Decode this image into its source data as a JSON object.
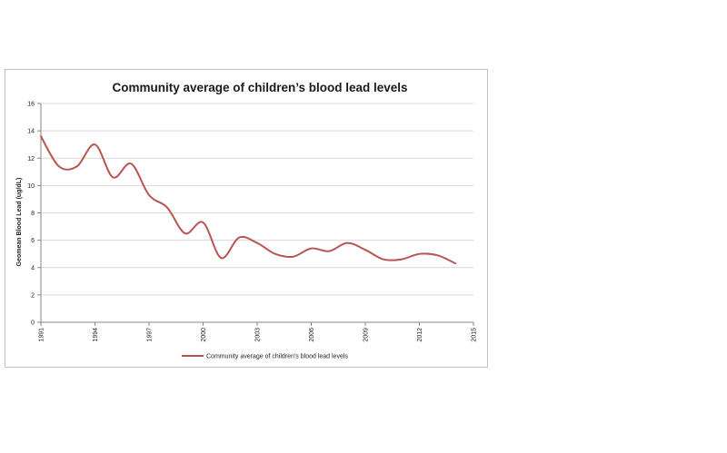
{
  "chart_data": {
    "type": "line",
    "title": "Community average of children’s blood lead levels",
    "xlabel": "",
    "ylabel": "Geomean Blood Lead (ug/dL)",
    "xlim": [
      1991,
      2015
    ],
    "ylim": [
      0,
      16
    ],
    "x_ticks": [
      "1991",
      "1994",
      "1997",
      "2000",
      "2003",
      "2006",
      "2009",
      "2012",
      "2015"
    ],
    "y_ticks": [
      "0",
      "2",
      "4",
      "6",
      "8",
      "10",
      "12",
      "14",
      "16"
    ],
    "grid": true,
    "legend_position": "bottom",
    "colors": {
      "series": "#b85450",
      "grid": "#d9d9d9",
      "axis": "#868686"
    },
    "series": [
      {
        "name": "Community average of children’s blood lead levels",
        "x": [
          1991,
          1992,
          1993,
          1994,
          1995,
          1996,
          1997,
          1998,
          1999,
          2000,
          2001,
          2002,
          2003,
          2004,
          2005,
          2006,
          2007,
          2008,
          2009,
          2010,
          2011,
          2012,
          2013,
          2014
        ],
        "y": [
          13.6,
          11.4,
          11.4,
          13.0,
          10.6,
          11.6,
          9.3,
          8.4,
          6.5,
          7.3,
          4.7,
          6.2,
          5.8,
          5.0,
          4.8,
          5.4,
          5.2,
          5.8,
          5.3,
          4.6,
          4.6,
          5.0,
          4.9,
          4.3
        ]
      }
    ]
  }
}
